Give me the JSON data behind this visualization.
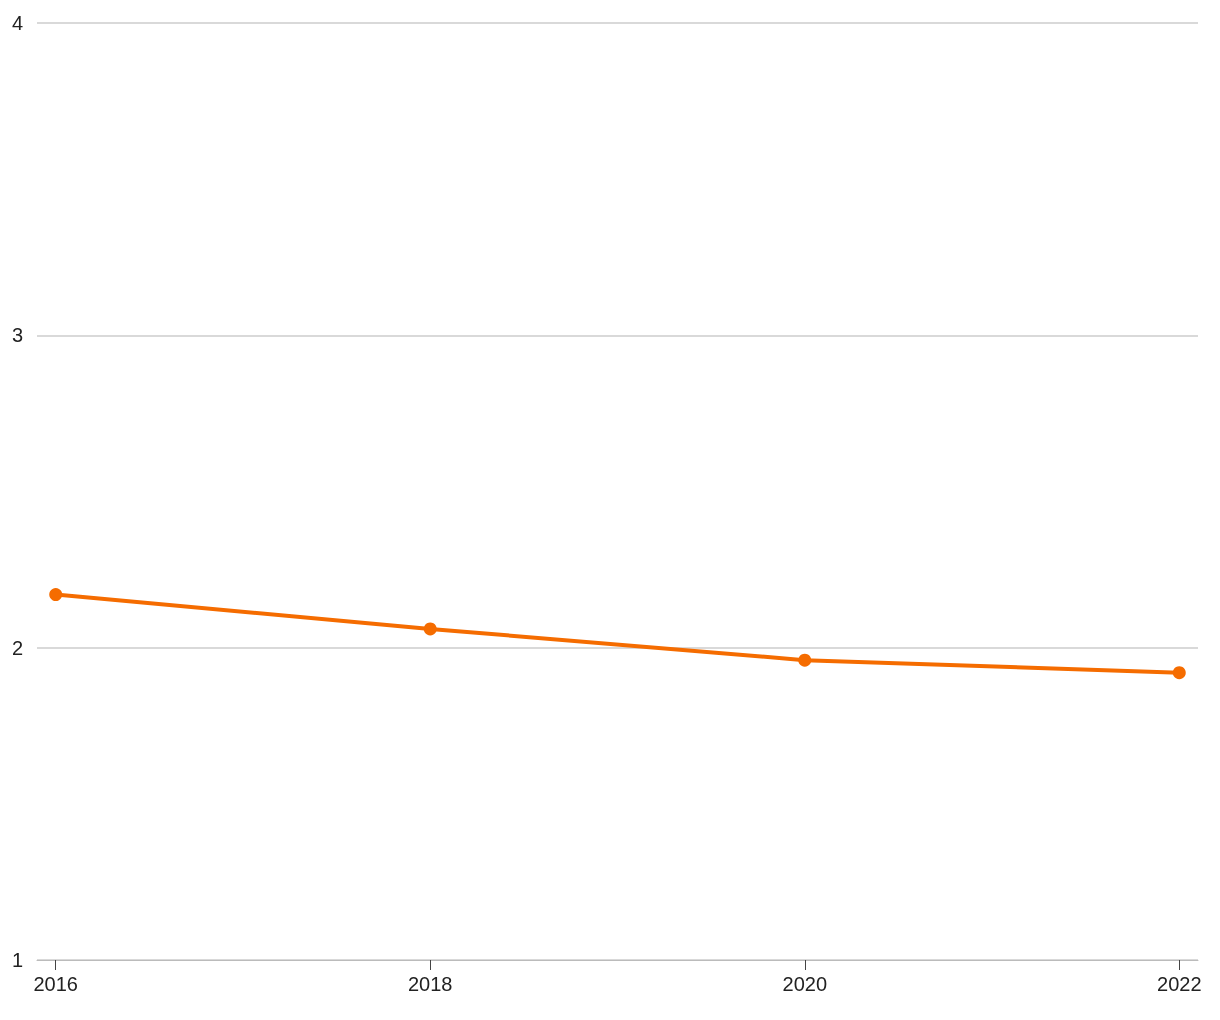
{
  "chart_data": {
    "type": "line",
    "x": [
      2016,
      2018,
      2020,
      2022
    ],
    "series": [
      {
        "color": "#f56c00",
        "values": [
          2.17,
          2.06,
          1.96,
          1.92
        ]
      }
    ],
    "xlim": [
      2015.9,
      2022.1
    ],
    "xticks": [
      2016,
      2018,
      2020,
      2022
    ],
    "ylim": [
      1,
      4
    ],
    "yticks": [
      1,
      2,
      3,
      4
    ],
    "grid": "y",
    "marker": "circle",
    "line_style": "solid"
  }
}
